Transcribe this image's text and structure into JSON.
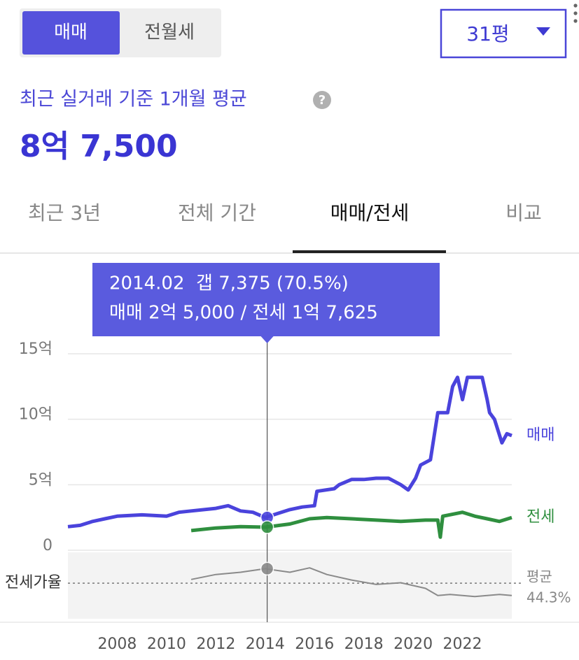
{
  "toggle": {
    "items": [
      "매매",
      "전월세"
    ]
  },
  "size_select": {
    "label": "31평"
  },
  "summary": {
    "caption": "최근 실거래 기준 1개월 평균",
    "help": "?",
    "price": "8억 7,500"
  },
  "tabs": [
    "최근 3년",
    "전체 기간",
    "매매/전세",
    "비교"
  ],
  "chart_data": {
    "type": "line",
    "xlim": [
      2006,
      2024
    ],
    "xticks": [
      2008,
      2010,
      2012,
      2014,
      2016,
      2018,
      2020,
      2022
    ],
    "ylim": [
      0,
      15
    ],
    "yticks": [
      0,
      {
        "value": 5,
        "label": "5억"
      },
      {
        "value": 10,
        "label": "10억"
      },
      {
        "value": 15,
        "label": "15억"
      }
    ],
    "y2lim": [
      -20,
      100
    ],
    "grid": true,
    "series": [
      {
        "name": "매매",
        "color": "#4a43dc",
        "x": [
          2006.0,
          2006.5,
          2007.0,
          2007.5,
          2008.0,
          2009.0,
          2010.0,
          2010.5,
          2011.0,
          2012.0,
          2012.5,
          2013.0,
          2013.5,
          2014.0,
          2014.5,
          2015.0,
          2015.5,
          2016.0,
          2016.1,
          2016.8,
          2017.0,
          2017.5,
          2018.0,
          2018.5,
          2019.0,
          2019.5,
          2019.8,
          2020.1,
          2020.3,
          2020.7,
          2021.0,
          2021.4,
          2021.6,
          2021.8,
          2022.0,
          2022.2,
          2022.8,
          2023.0,
          2023.1,
          2023.3,
          2023.6,
          2023.8,
          2024.0
        ],
        "values": [
          1.8,
          1.9,
          2.2,
          2.4,
          2.6,
          2.7,
          2.6,
          2.9,
          3.0,
          3.2,
          3.4,
          3.0,
          2.9,
          2.5,
          2.8,
          3.1,
          3.3,
          3.4,
          4.5,
          4.7,
          5.0,
          5.4,
          5.4,
          5.5,
          5.5,
          5.0,
          4.6,
          5.5,
          6.5,
          6.9,
          10.5,
          10.5,
          12.5,
          13.2,
          11.5,
          13.2,
          13.2,
          11.5,
          10.5,
          10.0,
          8.2,
          8.9,
          8.75
        ]
      },
      {
        "name": "전세",
        "color": "#2f8f3f",
        "x": [
          2011.0,
          2012.0,
          2013.0,
          2014.0,
          2015.0,
          2015.8,
          2016.5,
          2017.5,
          2018.5,
          2019.5,
          2020.5,
          2021.0,
          2021.1,
          2021.2,
          2022.0,
          2022.5,
          2023.0,
          2023.5,
          2024.0
        ],
        "values": [
          1.5,
          1.7,
          1.8,
          1.7625,
          2.0,
          2.4,
          2.5,
          2.4,
          2.3,
          2.2,
          2.3,
          2.3,
          1.0,
          2.6,
          2.9,
          2.6,
          2.4,
          2.2,
          2.5
        ]
      },
      {
        "name": "전세가율",
        "color": "#8a8a8a",
        "axis": "y2",
        "x": [
          2011.0,
          2012.0,
          2013.0,
          2014.0,
          2015.0,
          2015.8,
          2016.5,
          2017.5,
          2018.5,
          2019.5,
          2020.5,
          2021.0,
          2021.5,
          2022.5,
          2023.5,
          2024.0
        ],
        "values": [
          51,
          60,
          64,
          70.5,
          64,
          72,
          60,
          50,
          42,
          45,
          35,
          22,
          24,
          20,
          24,
          22
        ]
      }
    ],
    "reference": {
      "name": "평균",
      "value": 44.3,
      "label": "44.3%"
    },
    "hover": {
      "x": 2014.08,
      "values": [
        2.5,
        1.7625,
        70.5
      ],
      "lines": [
        "2014.02  갭 7,375 (70.5%)",
        "매매 2억 5,000 / 전세 1억 7,625"
      ]
    }
  }
}
